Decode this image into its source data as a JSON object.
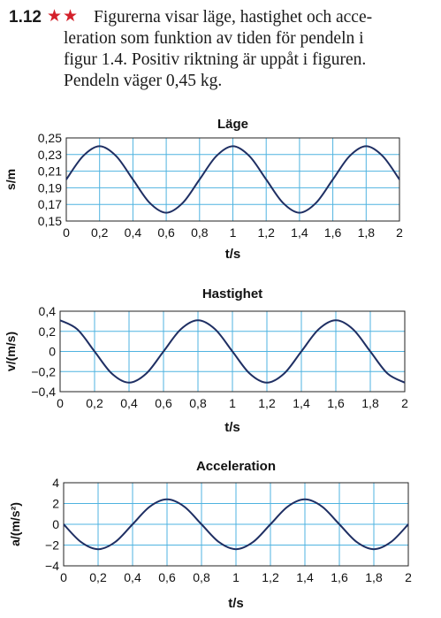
{
  "problem": {
    "number": "1.12",
    "stars": "★★",
    "lines": [
      "Figurerna visar läge, hastighet och acce-",
      "leration som funktion av tiden för pendeln i",
      "figur 1.4. Positiv riktning är uppåt i figuren.",
      "Pendeln väger 0,45 kg."
    ]
  },
  "colors": {
    "curve": "#1f2f63",
    "grid": "#4fb3e0",
    "frame": "#222222"
  },
  "chart_data": [
    {
      "type": "line",
      "title": "Läge",
      "xlabel": "t/s",
      "ylabel": "s/m",
      "xlim": [
        0,
        2
      ],
      "ylim": [
        0.15,
        0.25
      ],
      "xticks": [
        "0",
        "0,2",
        "0,4",
        "0,6",
        "0,8",
        "1",
        "1,2",
        "1,4",
        "1,6",
        "1,8",
        "2"
      ],
      "yticks": [
        "0,25",
        "0,23",
        "0,21",
        "0,19",
        "0,17",
        "0,15"
      ],
      "grid": true,
      "x": [
        0,
        0.1,
        0.2,
        0.3,
        0.4,
        0.5,
        0.6,
        0.7,
        0.8,
        0.9,
        1.0,
        1.1,
        1.2,
        1.3,
        1.4,
        1.5,
        1.6,
        1.7,
        1.8,
        1.9,
        2.0
      ],
      "y": [
        0.2,
        0.228,
        0.24,
        0.228,
        0.2,
        0.172,
        0.16,
        0.172,
        0.2,
        0.228,
        0.24,
        0.228,
        0.2,
        0.172,
        0.16,
        0.172,
        0.2,
        0.228,
        0.24,
        0.228,
        0.2
      ]
    },
    {
      "type": "line",
      "title": "Hastighet",
      "xlabel": "t/s",
      "ylabel": "v/(m/s)",
      "xlim": [
        0,
        2
      ],
      "ylim": [
        -0.4,
        0.4
      ],
      "xticks": [
        "0",
        "0,2",
        "0,4",
        "0,6",
        "0,8",
        "1",
        "1,2",
        "1,4",
        "1,6",
        "1,8",
        "2"
      ],
      "yticks": [
        "0,4",
        "0,2",
        "0",
        "−0,2",
        "−0,4"
      ],
      "grid": true,
      "x": [
        0,
        0.1,
        0.2,
        0.3,
        0.4,
        0.5,
        0.6,
        0.7,
        0.8,
        0.9,
        1.0,
        1.1,
        1.2,
        1.3,
        1.4,
        1.5,
        1.6,
        1.7,
        1.8,
        1.9,
        2.0
      ],
      "y": [
        0.31,
        0.22,
        0.0,
        -0.22,
        -0.31,
        -0.22,
        0.0,
        0.22,
        0.31,
        0.22,
        0.0,
        -0.22,
        -0.31,
        -0.22,
        0.0,
        0.22,
        0.31,
        0.22,
        0.0,
        -0.22,
        -0.31
      ]
    },
    {
      "type": "line",
      "title": "Acceleration",
      "xlabel": "t/s",
      "ylabel": "a/(m/s²)",
      "xlim": [
        0,
        2
      ],
      "ylim": [
        -4,
        4
      ],
      "xticks": [
        "0",
        "0,2",
        "0,4",
        "0,6",
        "0,8",
        "1",
        "1,2",
        "1,4",
        "1,6",
        "1,8",
        "2"
      ],
      "yticks": [
        "4",
        "2",
        "0",
        "−2",
        "−4"
      ],
      "grid": true,
      "x": [
        0,
        0.1,
        0.2,
        0.3,
        0.4,
        0.5,
        0.6,
        0.7,
        0.8,
        0.9,
        1.0,
        1.1,
        1.2,
        1.3,
        1.4,
        1.5,
        1.6,
        1.7,
        1.8,
        1.9,
        2.0
      ],
      "y": [
        0,
        -1.7,
        -2.4,
        -1.7,
        0,
        1.7,
        2.4,
        1.7,
        0,
        -1.7,
        -2.4,
        -1.7,
        0,
        1.7,
        2.4,
        1.7,
        0,
        -1.7,
        -2.4,
        -1.7,
        0
      ]
    }
  ]
}
